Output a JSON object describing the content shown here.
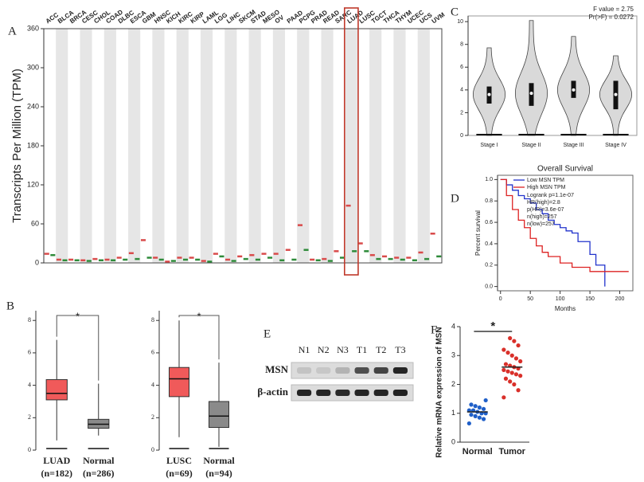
{
  "chart_data": [
    {
      "type": "dot",
      "panel": "A",
      "ylabel": "Transcripts Per Million (TPM)",
      "categories": [
        "ACC",
        "BLCA",
        "BRCA",
        "CESC",
        "CHOL",
        "COAD",
        "DLBC",
        "ESCA",
        "GBM",
        "HNSC",
        "KICH",
        "KIRC",
        "KIRP",
        "LAML",
        "LGG",
        "LIHC",
        "SKCM",
        "STAD",
        "MESO",
        "OV",
        "PAAD",
        "PCPG",
        "PRAD",
        "READ",
        "SARC",
        "LUAD",
        "LUSC",
        "TGCT",
        "THCA",
        "THYM",
        "UCEC",
        "UCS",
        "UVM"
      ],
      "label_colors": [
        "#111",
        "#111",
        "#111",
        "#111",
        "#111",
        "#111",
        "#e07060",
        "#e07060",
        "#e07060",
        "#111",
        "#111",
        "#111",
        "#111",
        "#2e9a3a",
        "#111",
        "#111",
        "#111",
        "#111",
        "#111",
        "#e07060",
        "#111",
        "#111",
        "#111",
        "#111",
        "#111",
        "#e07060",
        "#e07060",
        "#e07060",
        "#e07060",
        "#e07060",
        "#111",
        "#e07060",
        "#111"
      ],
      "series": [
        {
          "color": "#d94b4b",
          "values": [
            14,
            5,
            5,
            4,
            6,
            5,
            8,
            15,
            35,
            8,
            2,
            8,
            8,
            3,
            14,
            5,
            10,
            12,
            14,
            14,
            20,
            58,
            5,
            6,
            18,
            88,
            30,
            12,
            10,
            8,
            8,
            16,
            45
          ]
        },
        {
          "color": "#2e8b3a",
          "values": [
            12,
            4,
            4,
            3,
            4,
            4,
            5,
            6,
            8,
            5,
            3,
            5,
            5,
            2,
            10,
            3,
            6,
            5,
            8,
            4,
            5,
            20,
            4,
            3,
            8,
            18,
            18,
            6,
            6,
            5,
            4,
            6,
            10
          ]
        }
      ],
      "highlight_index": 25,
      "ylim": [
        0,
        360
      ],
      "yticks": [
        0,
        60,
        120,
        180,
        240,
        300,
        360
      ]
    },
    {
      "type": "box",
      "panel": "B",
      "categories": [
        "LUAD",
        "Normal"
      ],
      "n_labels": [
        "(n=182)",
        "(n=286)"
      ],
      "colors": [
        "#f05a5a",
        "#8a8a8a"
      ],
      "boxes": [
        {
          "low": 0.6,
          "q1": 3.1,
          "median": 3.5,
          "q3": 4.35,
          "high": 6.8
        },
        {
          "low": 0.9,
          "q1": 1.35,
          "median": 1.6,
          "q3": 1.9,
          "high": 4.1
        }
      ],
      "annotation": "*",
      "ylim": [
        0,
        8.6
      ],
      "yticks": [
        0,
        2,
        4,
        6,
        8
      ]
    },
    {
      "type": "box",
      "categories": [
        "LUSC",
        "Normal"
      ],
      "n_labels": [
        "(n=69)",
        "(n=94)"
      ],
      "colors": [
        "#f05a5a",
        "#8a8a8a"
      ],
      "boxes": [
        {
          "low": 0.8,
          "q1": 3.3,
          "median": 4.4,
          "q3": 5.1,
          "high": 8.0
        },
        {
          "low": 0.2,
          "q1": 1.4,
          "median": 2.1,
          "q3": 3.0,
          "high": 5.4
        }
      ],
      "annotation": "*",
      "ylim": [
        0,
        8.6
      ],
      "yticks": [
        0,
        2,
        4,
        6,
        8
      ]
    },
    {
      "type": "violin",
      "panel": "C",
      "categories": [
        "Stage I",
        "Stage II",
        "Stage III",
        "Stage IV"
      ],
      "annotations": [
        "F value = 2.75",
        "Pr(>F) = 0.0272"
      ],
      "boxes": [
        {
          "low": 0,
          "q1": 2.8,
          "median": 3.6,
          "q3": 4.3,
          "high": 7.7
        },
        {
          "low": 0,
          "q1": 2.6,
          "median": 3.7,
          "q3": 4.6,
          "high": 10.1
        },
        {
          "low": 0,
          "q1": 3.3,
          "median": 4.0,
          "q3": 4.8,
          "high": 8.7
        },
        {
          "low": 0,
          "q1": 2.3,
          "median": 3.6,
          "q3": 4.8,
          "high": 7.0
        }
      ],
      "ylim": [
        0,
        10.5
      ],
      "yticks": [
        0,
        2,
        4,
        6,
        8,
        10
      ]
    },
    {
      "type": "survival",
      "panel": "D",
      "title": "Overall Survival",
      "xlabel": "Months",
      "ylabel": "Percent survival",
      "series": [
        {
          "name": "Low MSN TPM",
          "color": "#2233cc",
          "x": [
            0,
            10,
            20,
            30,
            40,
            50,
            60,
            70,
            80,
            90,
            100,
            110,
            120,
            130,
            150,
            160,
            175
          ],
          "values": [
            1,
            0.95,
            0.9,
            0.85,
            0.82,
            0.78,
            0.72,
            0.68,
            0.62,
            0.58,
            0.55,
            0.52,
            0.5,
            0.42,
            0.3,
            0.2,
            0
          ]
        },
        {
          "name": "High MSN TPM",
          "color": "#dd2222",
          "x": [
            0,
            10,
            20,
            30,
            40,
            50,
            60,
            70,
            80,
            100,
            120,
            150,
            175,
            215
          ],
          "values": [
            1,
            0.85,
            0.72,
            0.62,
            0.55,
            0.45,
            0.38,
            0.32,
            0.28,
            0.22,
            0.18,
            0.14,
            0.14,
            0.14
          ]
        }
      ],
      "annotations": [
        "Logrank p=1.1e-07",
        "HR(high)=2.8",
        "p(HR)=3.6e-07",
        "n(high)=257",
        "n(low)=257"
      ],
      "xlim": [
        -5,
        222
      ],
      "xticks": [
        0,
        50,
        100,
        150,
        200
      ],
      "ylim": [
        -0.04,
        1.04
      ],
      "yticks": [
        {
          "value": 0,
          "label": "0.0"
        },
        0.2,
        0.4,
        0.6,
        0.8,
        {
          "value": 1,
          "label": "1.0"
        }
      ]
    },
    {
      "type": "blot",
      "panel": "E",
      "lanes": [
        "N1",
        "N2",
        "N3",
        "T1",
        "T2",
        "T3"
      ],
      "rows": [
        {
          "name": "MSN",
          "values": [
            0.12,
            0.1,
            0.2,
            0.7,
            0.75,
            0.9
          ]
        },
        {
          "name": "β-actin",
          "values": [
            0.9,
            0.9,
            0.88,
            0.9,
            0.9,
            0.92
          ]
        }
      ]
    },
    {
      "type": "strip",
      "panel": "F",
      "ylabel": "Relative mRNA expression of MSN",
      "categories": [
        "Normal",
        "Tumor"
      ],
      "annotation": "*",
      "groups": [
        {
          "color": "#1f5fc8",
          "mean": 1.05,
          "values": [
            0.65,
            0.8,
            0.85,
            0.9,
            0.95,
            1.0,
            1.0,
            1.05,
            1.1,
            1.1,
            1.15,
            1.2,
            1.25,
            1.3,
            1.45
          ]
        },
        {
          "color": "#d9302a",
          "mean": 2.6,
          "values": [
            1.55,
            1.8,
            2.0,
            2.1,
            2.2,
            2.3,
            2.35,
            2.4,
            2.45,
            2.5,
            2.55,
            2.6,
            2.65,
            2.7,
            2.8,
            2.9,
            3.0,
            3.1,
            3.2,
            3.35,
            3.5,
            3.6
          ]
        }
      ],
      "ylim": [
        0,
        4
      ],
      "yticks": [
        0,
        1,
        2,
        3,
        4
      ]
    }
  ]
}
